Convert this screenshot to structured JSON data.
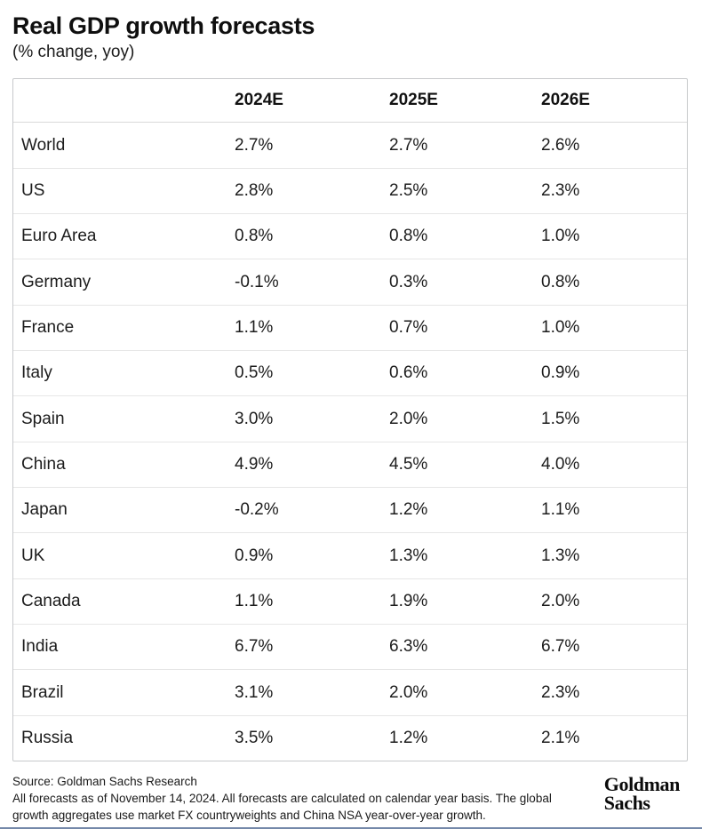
{
  "header": {
    "title": "Real GDP growth forecasts",
    "subtitle": "(% change, yoy)"
  },
  "table": {
    "columns": [
      "2024E",
      "2025E",
      "2026E"
    ],
    "rows": [
      {
        "label": "World",
        "values": [
          "2.7%",
          "2.7%",
          "2.6%"
        ]
      },
      {
        "label": "US",
        "values": [
          "2.8%",
          "2.5%",
          "2.3%"
        ]
      },
      {
        "label": "Euro Area",
        "values": [
          "0.8%",
          "0.8%",
          "1.0%"
        ]
      },
      {
        "label": "Germany",
        "values": [
          "-0.1%",
          "0.3%",
          "0.8%"
        ]
      },
      {
        "label": "France",
        "values": [
          "1.1%",
          "0.7%",
          "1.0%"
        ]
      },
      {
        "label": "Italy",
        "values": [
          "0.5%",
          "0.6%",
          "0.9%"
        ]
      },
      {
        "label": "Spain",
        "values": [
          "3.0%",
          "2.0%",
          "1.5%"
        ]
      },
      {
        "label": "China",
        "values": [
          "4.9%",
          "4.5%",
          "4.0%"
        ]
      },
      {
        "label": "Japan",
        "values": [
          "-0.2%",
          "1.2%",
          "1.1%"
        ]
      },
      {
        "label": "UK",
        "values": [
          "0.9%",
          "1.3%",
          "1.3%"
        ]
      },
      {
        "label": "Canada",
        "values": [
          "1.1%",
          "1.9%",
          "2.0%"
        ]
      },
      {
        "label": "India",
        "values": [
          "6.7%",
          "6.3%",
          "6.7%"
        ]
      },
      {
        "label": "Brazil",
        "values": [
          "3.1%",
          "2.0%",
          "2.3%"
        ]
      },
      {
        "label": "Russia",
        "values": [
          "3.5%",
          "1.2%",
          "2.1%"
        ]
      }
    ]
  },
  "chart_data": {
    "type": "table",
    "title": "Real GDP growth forecasts",
    "subtitle": "(% change, yoy)",
    "unit": "% change yoy",
    "columns": [
      "2024E",
      "2025E",
      "2026E"
    ],
    "categories": [
      "World",
      "US",
      "Euro Area",
      "Germany",
      "France",
      "Italy",
      "Spain",
      "China",
      "Japan",
      "UK",
      "Canada",
      "India",
      "Brazil",
      "Russia"
    ],
    "series": [
      {
        "name": "2024E",
        "values": [
          2.7,
          2.8,
          0.8,
          -0.1,
          1.1,
          0.5,
          3.0,
          4.9,
          -0.2,
          0.9,
          1.1,
          6.7,
          3.1,
          3.5
        ]
      },
      {
        "name": "2025E",
        "values": [
          2.7,
          2.5,
          0.8,
          0.3,
          0.7,
          0.6,
          2.0,
          4.5,
          1.2,
          1.3,
          1.9,
          6.3,
          2.0,
          1.2
        ]
      },
      {
        "name": "2026E",
        "values": [
          2.6,
          2.3,
          1.0,
          0.8,
          1.0,
          0.9,
          1.5,
          4.0,
          1.1,
          1.3,
          2.0,
          6.7,
          2.3,
          2.1
        ]
      }
    ]
  },
  "footer": {
    "source": "Source: Goldman Sachs Research",
    "note": "All forecasts as of November 14, 2024. All forecasts are calculated on calendar year basis. The global growth aggregates use market FX countryweights and China NSA year-over-year growth.",
    "logo_line1": "Goldman",
    "logo_line2": "Sachs"
  },
  "colors": {
    "text": "#1a1a1a",
    "table_border": "#c7c9cb",
    "row_divider": "#e6e6e6",
    "bottom_rule": "#7488a9",
    "background": "#ffffff"
  }
}
